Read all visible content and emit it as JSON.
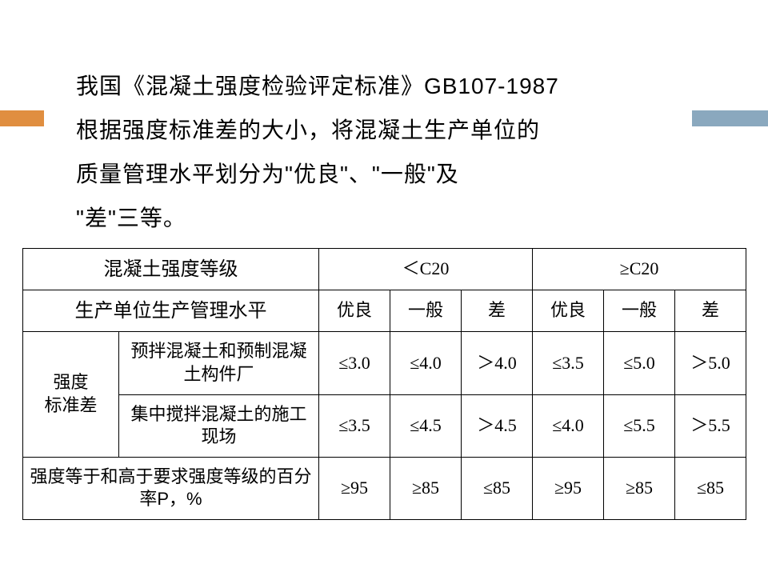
{
  "intro": {
    "line1": "我国《混凝土强度检验评定标准》GB107-1987",
    "line2": "根据强度标准差的大小，将混凝土生产单位的",
    "line3": "质量管理水平划分为\"优良\"、\"一般\"及",
    "line4": "\"差\"三等。"
  },
  "table": {
    "header_grade": "混凝土强度等级",
    "grade_lt": "＜C20",
    "grade_ge": "≥C20",
    "mgmt_level_label": "生产单位生产管理水平",
    "levels": {
      "good": "优良",
      "normal": "一般",
      "poor": "差"
    },
    "row_std_dev_label": "强度\n标准差",
    "row_precast_label": "预拌混凝土和预制混凝土构件厂",
    "row_site_label": "集中搅拌混凝土的施工现场",
    "row_percent_label": "强度等于和高于要求强度等级的百分率P，%",
    "precast": {
      "lt_good": "≤3.0",
      "lt_normal": "≤4.0",
      "lt_poor": "＞4.0",
      "ge_good": "≤3.5",
      "ge_normal": "≤5.0",
      "ge_poor": "＞5.0"
    },
    "site": {
      "lt_good": "≤3.5",
      "lt_normal": "≤4.5",
      "lt_poor": "＞4.5",
      "ge_good": "≤4.0",
      "ge_normal": "≤5.5",
      "ge_poor": "＞5.5"
    },
    "percent": {
      "lt_good": "≥95",
      "lt_normal": "≥85",
      "lt_poor": "≤85",
      "ge_good": "≥95",
      "ge_normal": "≥85",
      "ge_poor": "≤85"
    }
  },
  "colors": {
    "accent_left": "#e08e40",
    "accent_right": "#8aa8be",
    "background": "#ffffff",
    "text": "#000000",
    "border": "#000000"
  }
}
